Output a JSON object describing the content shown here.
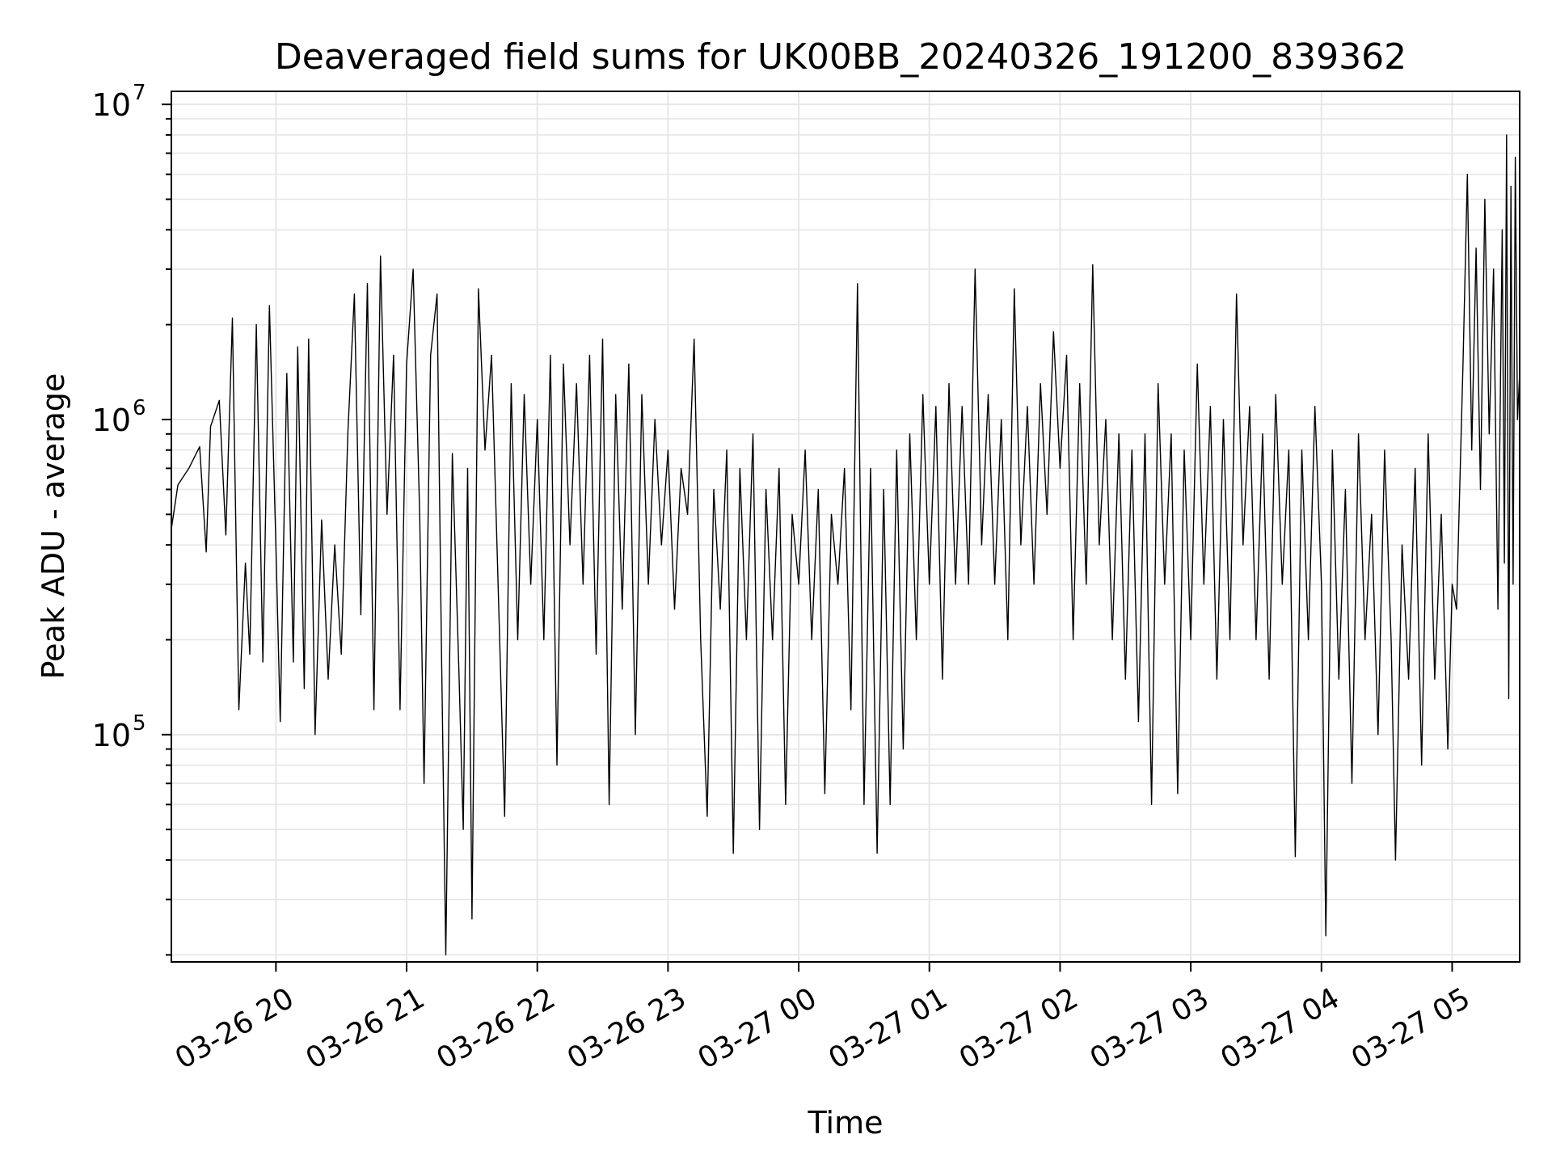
{
  "chart_data": {
    "type": "line",
    "title": "Deaveraged field sums for UK00BB_20240326_191200_839362",
    "xlabel": "Time",
    "ylabel": "Peak ADU - average",
    "yscale": "log",
    "xlim": [
      "2024-03-26 19:12",
      "2024-03-27 05:31"
    ],
    "ylim": [
      19000,
      11000000
    ],
    "grid": true,
    "line_color": "#000000",
    "grid_color": "#e6e6e6",
    "x_ticks": [
      {
        "t": "2024-03-26 20:00",
        "label": "03-26 20"
      },
      {
        "t": "2024-03-26 21:00",
        "label": "03-26 21"
      },
      {
        "t": "2024-03-26 22:00",
        "label": "03-26 22"
      },
      {
        "t": "2024-03-26 23:00",
        "label": "03-26 23"
      },
      {
        "t": "2024-03-27 00:00",
        "label": "03-27 00"
      },
      {
        "t": "2024-03-27 01:00",
        "label": "03-27 01"
      },
      {
        "t": "2024-03-27 02:00",
        "label": "03-27 02"
      },
      {
        "t": "2024-03-27 03:00",
        "label": "03-27 03"
      },
      {
        "t": "2024-03-27 04:00",
        "label": "03-27 04"
      },
      {
        "t": "2024-03-27 05:00",
        "label": "03-27 05"
      }
    ],
    "y_ticks": [
      {
        "value": 100000,
        "base": "10",
        "exp": "5"
      },
      {
        "value": 1000000,
        "base": "10",
        "exp": "6"
      },
      {
        "value": 10000000,
        "base": "10",
        "exp": "7"
      }
    ],
    "series": [
      {
        "points": [
          [
            "2024-03-26 19:12",
            450000
          ],
          [
            "2024-03-26 19:15",
            620000
          ],
          [
            "2024-03-26 19:20",
            700000
          ],
          [
            "2024-03-26 19:25",
            820000
          ],
          [
            "2024-03-26 19:28",
            380000
          ],
          [
            "2024-03-26 19:30",
            950000
          ],
          [
            "2024-03-26 19:34",
            1150000
          ],
          [
            "2024-03-26 19:37",
            430000
          ],
          [
            "2024-03-26 19:40",
            2100000
          ],
          [
            "2024-03-26 19:43",
            120000
          ],
          [
            "2024-03-26 19:46",
            350000
          ],
          [
            "2024-03-26 19:48",
            180000
          ],
          [
            "2024-03-26 19:51",
            2000000
          ],
          [
            "2024-03-26 19:54",
            170000
          ],
          [
            "2024-03-26 19:57",
            2300000
          ],
          [
            "2024-03-26 20:00",
            400000
          ],
          [
            "2024-03-26 20:02",
            110000
          ],
          [
            "2024-03-26 20:05",
            1400000
          ],
          [
            "2024-03-26 20:08",
            170000
          ],
          [
            "2024-03-26 20:10",
            1700000
          ],
          [
            "2024-03-26 20:13",
            140000
          ],
          [
            "2024-03-26 20:15",
            1800000
          ],
          [
            "2024-03-26 20:18",
            100000
          ],
          [
            "2024-03-26 20:21",
            480000
          ],
          [
            "2024-03-26 20:24",
            150000
          ],
          [
            "2024-03-26 20:27",
            400000
          ],
          [
            "2024-03-26 20:30",
            180000
          ],
          [
            "2024-03-26 20:33",
            900000
          ],
          [
            "2024-03-26 20:36",
            2500000
          ],
          [
            "2024-03-26 20:39",
            240000
          ],
          [
            "2024-03-26 20:42",
            2700000
          ],
          [
            "2024-03-26 20:45",
            120000
          ],
          [
            "2024-03-26 20:48",
            3300000
          ],
          [
            "2024-03-26 20:51",
            500000
          ],
          [
            "2024-03-26 20:54",
            1600000
          ],
          [
            "2024-03-26 20:57",
            120000
          ],
          [
            "2024-03-26 21:00",
            1500000
          ],
          [
            "2024-03-26 21:03",
            3000000
          ],
          [
            "2024-03-26 21:06",
            500000
          ],
          [
            "2024-03-26 21:08",
            70000
          ],
          [
            "2024-03-26 21:11",
            1600000
          ],
          [
            "2024-03-26 21:14",
            2500000
          ],
          [
            "2024-03-26 21:16",
            190000
          ],
          [
            "2024-03-26 21:18",
            20000
          ],
          [
            "2024-03-26 21:21",
            780000
          ],
          [
            "2024-03-26 21:24",
            160000
          ],
          [
            "2024-03-26 21:26",
            50000
          ],
          [
            "2024-03-26 21:28",
            700000
          ],
          [
            "2024-03-26 21:30",
            26000
          ],
          [
            "2024-03-26 21:33",
            2600000
          ],
          [
            "2024-03-26 21:36",
            800000
          ],
          [
            "2024-03-26 21:39",
            1600000
          ],
          [
            "2024-03-26 21:42",
            300000
          ],
          [
            "2024-03-26 21:45",
            55000
          ],
          [
            "2024-03-26 21:48",
            1300000
          ],
          [
            "2024-03-26 21:51",
            200000
          ],
          [
            "2024-03-26 21:54",
            1200000
          ],
          [
            "2024-03-26 21:57",
            300000
          ],
          [
            "2024-03-26 22:00",
            1000000
          ],
          [
            "2024-03-26 22:03",
            200000
          ],
          [
            "2024-03-26 22:06",
            1600000
          ],
          [
            "2024-03-26 22:09",
            80000
          ],
          [
            "2024-03-26 22:12",
            1500000
          ],
          [
            "2024-03-26 22:15",
            400000
          ],
          [
            "2024-03-26 22:18",
            1300000
          ],
          [
            "2024-03-26 22:21",
            300000
          ],
          [
            "2024-03-26 22:24",
            1600000
          ],
          [
            "2024-03-26 22:27",
            180000
          ],
          [
            "2024-03-26 22:30",
            1800000
          ],
          [
            "2024-03-26 22:33",
            60000
          ],
          [
            "2024-03-26 22:36",
            1200000
          ],
          [
            "2024-03-26 22:39",
            250000
          ],
          [
            "2024-03-26 22:42",
            1500000
          ],
          [
            "2024-03-26 22:45",
            100000
          ],
          [
            "2024-03-26 22:48",
            1200000
          ],
          [
            "2024-03-26 22:51",
            300000
          ],
          [
            "2024-03-26 22:54",
            1000000
          ],
          [
            "2024-03-26 22:57",
            400000
          ],
          [
            "2024-03-26 23:00",
            800000
          ],
          [
            "2024-03-26 23:03",
            250000
          ],
          [
            "2024-03-26 23:06",
            700000
          ],
          [
            "2024-03-26 23:09",
            500000
          ],
          [
            "2024-03-26 23:12",
            1800000
          ],
          [
            "2024-03-26 23:15",
            200000
          ],
          [
            "2024-03-26 23:18",
            55000
          ],
          [
            "2024-03-26 23:21",
            600000
          ],
          [
            "2024-03-26 23:24",
            250000
          ],
          [
            "2024-03-26 23:27",
            800000
          ],
          [
            "2024-03-26 23:30",
            42000
          ],
          [
            "2024-03-26 23:33",
            700000
          ],
          [
            "2024-03-26 23:36",
            200000
          ],
          [
            "2024-03-26 23:39",
            900000
          ],
          [
            "2024-03-26 23:42",
            50000
          ],
          [
            "2024-03-26 23:45",
            600000
          ],
          [
            "2024-03-26 23:48",
            200000
          ],
          [
            "2024-03-26 23:51",
            700000
          ],
          [
            "2024-03-26 23:54",
            60000
          ],
          [
            "2024-03-26 23:57",
            500000
          ],
          [
            "2024-03-27 00:00",
            300000
          ],
          [
            "2024-03-27 00:03",
            800000
          ],
          [
            "2024-03-27 00:06",
            200000
          ],
          [
            "2024-03-27 00:09",
            600000
          ],
          [
            "2024-03-27 00:12",
            65000
          ],
          [
            "2024-03-27 00:15",
            500000
          ],
          [
            "2024-03-27 00:18",
            300000
          ],
          [
            "2024-03-27 00:21",
            700000
          ],
          [
            "2024-03-27 00:24",
            120000
          ],
          [
            "2024-03-27 00:27",
            2700000
          ],
          [
            "2024-03-27 00:30",
            60000
          ],
          [
            "2024-03-27 00:33",
            700000
          ],
          [
            "2024-03-27 00:36",
            42000
          ],
          [
            "2024-03-27 00:39",
            600000
          ],
          [
            "2024-03-27 00:42",
            60000
          ],
          [
            "2024-03-27 00:45",
            800000
          ],
          [
            "2024-03-27 00:48",
            90000
          ],
          [
            "2024-03-27 00:51",
            900000
          ],
          [
            "2024-03-27 00:54",
            200000
          ],
          [
            "2024-03-27 00:57",
            1200000
          ],
          [
            "2024-03-27 01:00",
            300000
          ],
          [
            "2024-03-27 01:03",
            1100000
          ],
          [
            "2024-03-27 01:06",
            150000
          ],
          [
            "2024-03-27 01:09",
            1300000
          ],
          [
            "2024-03-27 01:12",
            300000
          ],
          [
            "2024-03-27 01:15",
            1100000
          ],
          [
            "2024-03-27 01:18",
            300000
          ],
          [
            "2024-03-27 01:21",
            3000000
          ],
          [
            "2024-03-27 01:24",
            400000
          ],
          [
            "2024-03-27 01:27",
            1200000
          ],
          [
            "2024-03-27 01:30",
            300000
          ],
          [
            "2024-03-27 01:33",
            1000000
          ],
          [
            "2024-03-27 01:36",
            200000
          ],
          [
            "2024-03-27 01:39",
            2600000
          ],
          [
            "2024-03-27 01:42",
            400000
          ],
          [
            "2024-03-27 01:45",
            1100000
          ],
          [
            "2024-03-27 01:48",
            300000
          ],
          [
            "2024-03-27 01:51",
            1300000
          ],
          [
            "2024-03-27 01:54",
            500000
          ],
          [
            "2024-03-27 01:57",
            1900000
          ],
          [
            "2024-03-27 02:00",
            700000
          ],
          [
            "2024-03-27 02:03",
            1600000
          ],
          [
            "2024-03-27 02:06",
            200000
          ],
          [
            "2024-03-27 02:09",
            1300000
          ],
          [
            "2024-03-27 02:12",
            300000
          ],
          [
            "2024-03-27 02:15",
            3100000
          ],
          [
            "2024-03-27 02:18",
            400000
          ],
          [
            "2024-03-27 02:21",
            1000000
          ],
          [
            "2024-03-27 02:24",
            200000
          ],
          [
            "2024-03-27 02:27",
            900000
          ],
          [
            "2024-03-27 02:30",
            150000
          ],
          [
            "2024-03-27 02:33",
            800000
          ],
          [
            "2024-03-27 02:36",
            110000
          ],
          [
            "2024-03-27 02:39",
            900000
          ],
          [
            "2024-03-27 02:42",
            60000
          ],
          [
            "2024-03-27 02:45",
            1300000
          ],
          [
            "2024-03-27 02:48",
            300000
          ],
          [
            "2024-03-27 02:51",
            900000
          ],
          [
            "2024-03-27 02:54",
            65000
          ],
          [
            "2024-03-27 02:57",
            800000
          ],
          [
            "2024-03-27 03:00",
            200000
          ],
          [
            "2024-03-27 03:03",
            1500000
          ],
          [
            "2024-03-27 03:06",
            300000
          ],
          [
            "2024-03-27 03:09",
            1100000
          ],
          [
            "2024-03-27 03:12",
            150000
          ],
          [
            "2024-03-27 03:15",
            1000000
          ],
          [
            "2024-03-27 03:18",
            200000
          ],
          [
            "2024-03-27 03:21",
            2500000
          ],
          [
            "2024-03-27 03:24",
            400000
          ],
          [
            "2024-03-27 03:27",
            1100000
          ],
          [
            "2024-03-27 03:30",
            200000
          ],
          [
            "2024-03-27 03:33",
            900000
          ],
          [
            "2024-03-27 03:36",
            150000
          ],
          [
            "2024-03-27 03:39",
            1200000
          ],
          [
            "2024-03-27 03:42",
            300000
          ],
          [
            "2024-03-27 03:45",
            800000
          ],
          [
            "2024-03-27 03:48",
            41000
          ],
          [
            "2024-03-27 03:51",
            800000
          ],
          [
            "2024-03-27 03:54",
            200000
          ],
          [
            "2024-03-27 03:57",
            1100000
          ],
          [
            "2024-03-27 04:00",
            300000
          ],
          [
            "2024-03-27 04:02",
            23000
          ],
          [
            "2024-03-27 04:05",
            800000
          ],
          [
            "2024-03-27 04:08",
            150000
          ],
          [
            "2024-03-27 04:11",
            600000
          ],
          [
            "2024-03-27 04:14",
            70000
          ],
          [
            "2024-03-27 04:17",
            900000
          ],
          [
            "2024-03-27 04:20",
            200000
          ],
          [
            "2024-03-27 04:23",
            500000
          ],
          [
            "2024-03-27 04:26",
            100000
          ],
          [
            "2024-03-27 04:29",
            800000
          ],
          [
            "2024-03-27 04:32",
            200000
          ],
          [
            "2024-03-27 04:34",
            40000
          ],
          [
            "2024-03-27 04:37",
            400000
          ],
          [
            "2024-03-27 04:40",
            150000
          ],
          [
            "2024-03-27 04:43",
            700000
          ],
          [
            "2024-03-27 04:46",
            80000
          ],
          [
            "2024-03-27 04:49",
            900000
          ],
          [
            "2024-03-27 04:52",
            150000
          ],
          [
            "2024-03-27 04:55",
            500000
          ],
          [
            "2024-03-27 04:58",
            90000
          ],
          [
            "2024-03-27 05:00",
            300000
          ],
          [
            "2024-03-27 05:02",
            250000
          ],
          [
            "2024-03-27 05:05",
            1500000
          ],
          [
            "2024-03-27 05:07",
            6000000
          ],
          [
            "2024-03-27 05:09",
            800000
          ],
          [
            "2024-03-27 05:11",
            3500000
          ],
          [
            "2024-03-27 05:13",
            600000
          ],
          [
            "2024-03-27 05:15",
            5000000
          ],
          [
            "2024-03-27 05:17",
            900000
          ],
          [
            "2024-03-27 05:19",
            3000000
          ],
          [
            "2024-03-27 05:21",
            250000
          ],
          [
            "2024-03-27 05:23",
            4000000
          ],
          [
            "2024-03-27 05:24",
            350000
          ],
          [
            "2024-03-27 05:25",
            8000000
          ],
          [
            "2024-03-27 05:26",
            130000
          ],
          [
            "2024-03-27 05:27",
            5500000
          ],
          [
            "2024-03-27 05:28",
            300000
          ],
          [
            "2024-03-27 05:29",
            6800000
          ],
          [
            "2024-03-27 05:30",
            1000000
          ],
          [
            "2024-03-27 05:31",
            1400000
          ]
        ]
      }
    ]
  }
}
